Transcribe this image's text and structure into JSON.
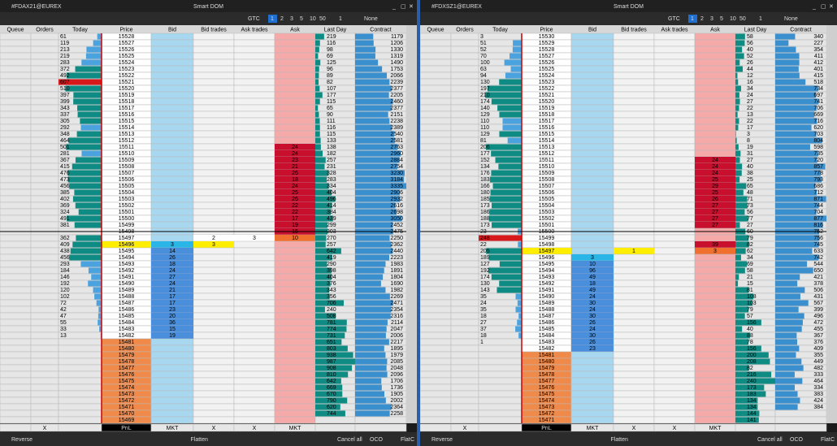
{
  "window_title": "Smart DOM",
  "headers": [
    "Queue",
    "Orders",
    "Today",
    "Price",
    "Bid",
    "Bid trades",
    "Ask trades",
    "Ask",
    "Last Day",
    "Contract"
  ],
  "bottom_row": [
    null,
    "X",
    null,
    "PnL",
    "MKT",
    "X",
    "X",
    "MKT",
    null,
    null
  ],
  "footer": [
    "Reverse",
    "Flatten",
    "Cancel all",
    "OCO",
    "Flat",
    "C"
  ],
  "toolbar": {
    "tif": "GTC",
    "sizes": [
      "1",
      "2",
      "3",
      "5",
      "10",
      "50"
    ],
    "qty": "1",
    "bracket": "None"
  },
  "colors": {
    "today_low": "#4aa3df",
    "today_high": "#0e8c84",
    "today_max": "#d7191c",
    "last_day": "#0e8c84",
    "contract": "#3a8fcf",
    "bid": "#4a8fdc",
    "best_bid": "#29b6e6",
    "ask": "#c8102e",
    "best_ask": "#f07030",
    "last_price": "#ffee00",
    "price_empty": "#f08a4b"
  },
  "panels": [
    {
      "symbol": "#FDAX21@EUREX",
      "last_price": 15496,
      "prices": [
        15528,
        15527,
        15526,
        15525,
        15524,
        15523,
        15522,
        15521,
        15520,
        15519,
        15518,
        15517,
        15516,
        15515,
        15514,
        15513,
        15512,
        15511,
        15510,
        15509,
        15508,
        15507,
        15506,
        15505,
        15504,
        15503,
        15502,
        15501,
        15500,
        15499,
        15498,
        15497,
        15496,
        15495,
        15494,
        15493,
        15492,
        15491,
        15490,
        15489,
        15488,
        15487,
        15486,
        15485,
        15484,
        15483,
        15482,
        15481,
        15480,
        15479,
        15478,
        15477,
        15476,
        15475,
        15474,
        15473,
        15472,
        15471,
        15470,
        15469
      ],
      "today": [
        61,
        119,
        213,
        219,
        283,
        372,
        492,
        607,
        510,
        397,
        399,
        343,
        337,
        305,
        292,
        348,
        464,
        501,
        281,
        367,
        415,
        476,
        473,
        456,
        385,
        402,
        369,
        324,
        491,
        381,
        null,
        362,
        409,
        438,
        456,
        293,
        184,
        146,
        192,
        120,
        102,
        72,
        42,
        47,
        55,
        33,
        13,
        null,
        null,
        null,
        null,
        null,
        null,
        null,
        null,
        null,
        null,
        null,
        null,
        null
      ],
      "bid": [
        null,
        null,
        null,
        null,
        null,
        null,
        null,
        null,
        null,
        null,
        null,
        null,
        null,
        null,
        null,
        null,
        null,
        null,
        null,
        null,
        null,
        null,
        null,
        null,
        null,
        null,
        null,
        null,
        null,
        null,
        null,
        null,
        3,
        14,
        26,
        18,
        24,
        27,
        24,
        21,
        17,
        17,
        23,
        20,
        36,
        15,
        19,
        null,
        null,
        null,
        null,
        null,
        null,
        null,
        null,
        null,
        null,
        null,
        null,
        null
      ],
      "bid_trades": [
        null,
        null,
        null,
        null,
        null,
        null,
        null,
        null,
        null,
        null,
        null,
        null,
        null,
        null,
        null,
        null,
        null,
        null,
        null,
        null,
        null,
        null,
        null,
        null,
        null,
        null,
        null,
        null,
        null,
        null,
        null,
        2,
        3,
        null,
        null,
        null,
        null,
        null,
        null,
        null,
        null,
        null,
        null,
        null,
        null,
        null,
        null,
        null,
        null,
        null,
        null,
        null,
        null,
        null,
        null,
        null,
        null,
        null,
        null,
        null
      ],
      "ask_trades": [
        null,
        null,
        null,
        null,
        null,
        null,
        null,
        null,
        null,
        null,
        null,
        null,
        null,
        null,
        null,
        null,
        null,
        null,
        null,
        null,
        null,
        null,
        null,
        null,
        null,
        null,
        null,
        null,
        null,
        null,
        null,
        3,
        null,
        null,
        null,
        null,
        null,
        null,
        null,
        null,
        null,
        null,
        null,
        null,
        null,
        null,
        null,
        null,
        null,
        null,
        null,
        null,
        null,
        null,
        null,
        null,
        null,
        null,
        null,
        null
      ],
      "ask": [
        null,
        null,
        null,
        null,
        null,
        null,
        null,
        null,
        null,
        null,
        null,
        null,
        null,
        null,
        null,
        null,
        null,
        24,
        24,
        23,
        21,
        26,
        18,
        24,
        25,
        26,
        22,
        22,
        17,
        19,
        15,
        10,
        null,
        null,
        null,
        null,
        null,
        null,
        null,
        null,
        null,
        null,
        null,
        null,
        null,
        null,
        null,
        null,
        null,
        null,
        null,
        null,
        null,
        null,
        null,
        null,
        null,
        null,
        null,
        null
      ],
      "last_day": [
        219,
        116,
        98,
        69,
        125,
        96,
        89,
        82,
        107,
        177,
        115,
        65,
        90,
        111,
        116,
        115,
        133,
        138,
        182,
        257,
        231,
        328,
        283,
        334,
        404,
        496,
        414,
        384,
        439,
        299,
        303,
        270,
        257,
        642,
        419,
        290,
        398,
        404,
        376,
        343,
        356,
        706,
        240,
        508,
        781,
        774,
        731,
        651,
        803,
        938,
        987,
        908,
        810,
        642,
        669,
        670,
        790,
        620,
        744,
        null
      ],
      "contract": [
        1179,
        1206,
        1330,
        1319,
        1490,
        1753,
        2066,
        2239,
        2377,
        2205,
        2460,
        2377,
        2151,
        2238,
        2389,
        2540,
        2581,
        2763,
        2960,
        2884,
        2754,
        3230,
        3184,
        3335,
        2906,
        2932,
        2616,
        2698,
        3050,
        2452,
        2475,
        2250,
        2362,
        2440,
        2223,
        1983,
        1891,
        1804,
        1690,
        1982,
        2269,
        2471,
        2354,
        2316,
        2114,
        2047,
        2006,
        2217,
        1895,
        1979,
        2085,
        2048,
        2096,
        1706,
        1736,
        1905,
        2002,
        2364,
        2258,
        null
      ]
    },
    {
      "symbol": "#FDXSZ1@EUREX",
      "last_price": 15497,
      "prices": [
        15530,
        15529,
        15528,
        15527,
        15526,
        15525,
        15524,
        15523,
        15522,
        15521,
        15520,
        15519,
        15518,
        15517,
        15516,
        15515,
        15514,
        15513,
        15512,
        15511,
        15510,
        15509,
        15508,
        15507,
        15506,
        15505,
        15504,
        15503,
        15502,
        15501,
        15500,
        15499,
        15498,
        15497,
        15496,
        15495,
        15494,
        15493,
        15492,
        15491,
        15490,
        15489,
        15488,
        15487,
        15486,
        15485,
        15484,
        15483,
        15482,
        15481,
        15480,
        15479,
        15478,
        15477,
        15476,
        15475,
        15474,
        15473,
        15472,
        15471
      ],
      "today": [
        3,
        51,
        52,
        70,
        100,
        63,
        94,
        130,
        197,
        210,
        174,
        140,
        129,
        110,
        110,
        129,
        81,
        206,
        177,
        152,
        134,
        176,
        183,
        166,
        180,
        185,
        173,
        186,
        188,
        173,
        23,
        248,
        22,
        205,
        189,
        127,
        192,
        174,
        130,
        143,
        35,
        24,
        35,
        18,
        27,
        37,
        18,
        1,
        null,
        null,
        null,
        null,
        null,
        null,
        null,
        null,
        null,
        null,
        null,
        null
      ],
      "bid": [
        null,
        null,
        null,
        null,
        null,
        null,
        null,
        null,
        null,
        null,
        null,
        null,
        null,
        null,
        null,
        null,
        null,
        null,
        null,
        null,
        null,
        null,
        null,
        null,
        null,
        null,
        null,
        null,
        null,
        null,
        null,
        null,
        null,
        null,
        3,
        10,
        96,
        49,
        18,
        49,
        24,
        30,
        24,
        30,
        26,
        24,
        30,
        26,
        23,
        null,
        null,
        null,
        null,
        null,
        null,
        null,
        null,
        null,
        null,
        null
      ],
      "bid_trades": [
        null,
        null,
        null,
        null,
        null,
        null,
        null,
        null,
        null,
        null,
        null,
        null,
        null,
        null,
        null,
        null,
        null,
        null,
        null,
        null,
        null,
        null,
        null,
        null,
        null,
        null,
        null,
        null,
        null,
        null,
        null,
        null,
        null,
        1,
        null,
        null,
        null,
        null,
        null,
        null,
        null,
        null,
        null,
        null,
        null,
        null,
        null,
        null,
        null,
        null,
        null,
        null,
        null,
        null,
        null,
        null,
        null,
        null,
        null,
        null
      ],
      "ask_trades": [
        null,
        null,
        null,
        null,
        null,
        null,
        null,
        null,
        null,
        null,
        null,
        null,
        null,
        null,
        null,
        null,
        null,
        null,
        null,
        null,
        null,
        null,
        null,
        null,
        null,
        null,
        null,
        null,
        null,
        null,
        null,
        null,
        null,
        null,
        null,
        null,
        null,
        null,
        null,
        null,
        null,
        null,
        null,
        null,
        null,
        null,
        null,
        null,
        null,
        null,
        null,
        null,
        null,
        null,
        null,
        null,
        null,
        null,
        null,
        null
      ],
      "ask": [
        null,
        null,
        null,
        null,
        null,
        null,
        null,
        null,
        null,
        null,
        null,
        null,
        null,
        null,
        null,
        null,
        null,
        null,
        null,
        24,
        24,
        24,
        25,
        29,
        25,
        26,
        27,
        27,
        27,
        27,
        null,
        null,
        39,
        3,
        null,
        null,
        null,
        null,
        null,
        null,
        null,
        null,
        null,
        null,
        null,
        null,
        null,
        null,
        null,
        null,
        null,
        null,
        null,
        null,
        null,
        null,
        null,
        null,
        null,
        null
      ],
      "last_day": [
        58,
        56,
        40,
        52,
        26,
        44,
        12,
        16,
        34,
        24,
        27,
        22,
        13,
        22,
        17,
        3,
        8,
        19,
        31,
        27,
        40,
        38,
        25,
        65,
        48,
        71,
        73,
        56,
        77,
        27,
        60,
        79,
        82,
        62,
        34,
        69,
        58,
        21,
        15,
        81,
        108,
        103,
        79,
        57,
        156,
        40,
        88,
        78,
        156,
        200,
        208,
        82,
        216,
        240,
        173,
        183,
        134,
        134,
        144,
        141
      ],
      "contract": [
        340,
        227,
        354,
        411,
        412,
        401,
        415,
        518,
        734,
        697,
        741,
        706,
        669,
        716,
        620,
        703,
        804,
        598,
        735,
        720,
        857,
        778,
        793,
        686,
        712,
        871,
        744,
        704,
        877,
        816,
        752,
        756,
        745,
        633,
        742,
        544,
        650,
        421,
        378,
        506,
        431,
        567,
        399,
        496,
        472,
        455,
        367,
        376,
        409,
        355,
        449,
        482,
        333,
        464,
        334,
        383,
        424,
        384,
        null,
        null
      ]
    }
  ]
}
